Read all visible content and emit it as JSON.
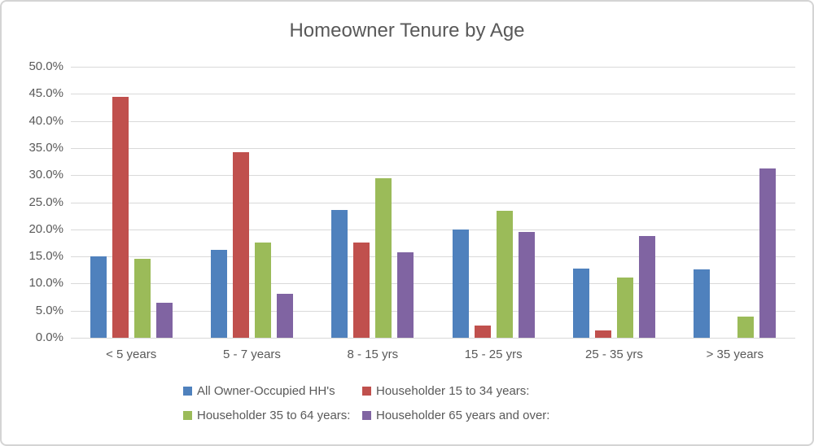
{
  "chart_data": {
    "type": "bar",
    "title": "Homeowner Tenure by Age",
    "categories": [
      "< 5 years",
      "5 - 7 years",
      "8 - 15 yrs",
      "15 - 25 yrs",
      "25 - 35 yrs",
      "> 35 years"
    ],
    "series": [
      {
        "name": "All Owner-Occupied HH's",
        "color": "#4F81BD",
        "values": [
          15.0,
          16.2,
          23.5,
          19.9,
          12.7,
          12.6
        ]
      },
      {
        "name": "Householder 15 to 34 years:",
        "color": "#C0504D",
        "values": [
          44.4,
          34.3,
          17.5,
          2.2,
          1.3,
          0.0
        ]
      },
      {
        "name": "Householder 35 to 64 years:",
        "color": "#9BBB59",
        "values": [
          14.6,
          17.6,
          29.4,
          23.4,
          11.1,
          3.9
        ]
      },
      {
        "name": "Householder 65 years and over:",
        "color": "#8064A2",
        "values": [
          6.5,
          8.1,
          15.7,
          19.5,
          18.8,
          31.2
        ]
      }
    ],
    "ylim": [
      0,
      50
    ],
    "ytick_step": 5,
    "ytick_labels": [
      "0.0%",
      "5.0%",
      "10.0%",
      "15.0%",
      "20.0%",
      "25.0%",
      "30.0%",
      "35.0%",
      "40.0%",
      "45.0%",
      "50.0%"
    ],
    "xlabel": "",
    "ylabel": "",
    "grid": true,
    "legend_position": "bottom",
    "legend_columns": 2,
    "grid_color": "#d9d9d9",
    "text_color": "#595959"
  }
}
